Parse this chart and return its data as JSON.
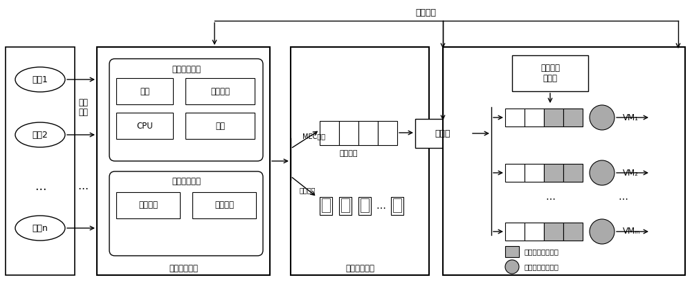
{
  "title": "反馈信息",
  "bg_color": "#ffffff",
  "users": [
    "用户1",
    "用户2",
    "用户n"
  ],
  "offload_label": "卸载\n请求",
  "compute_module_label": "计算卸载模块",
  "resource_monitor_label": "资源监测模块",
  "resource_items": [
    [
      "网络",
      "电池电量"
    ],
    [
      "CPU",
      "存储"
    ]
  ],
  "offload_decision_label": "卸载决策模块",
  "offload_items": [
    "应用建模",
    "卸载决策"
  ],
  "resource_alloc_label": "资源分配模块",
  "mec_label": "MEC执行",
  "local_label": "本地执行",
  "global_queue_label": "全局队列",
  "scheduler_label": "调度器",
  "exec_order_label": "执行顺序\n控制器",
  "vm_labels": [
    "VM₁",
    "VM₂",
    "VMₘ"
  ],
  "legend_task_label": "队列中等待的任务",
  "legend_vm_label": "边缘服务器虚拟机",
  "gray_fill": "#b0b0b0",
  "circle_fill": "#aaaaaa"
}
